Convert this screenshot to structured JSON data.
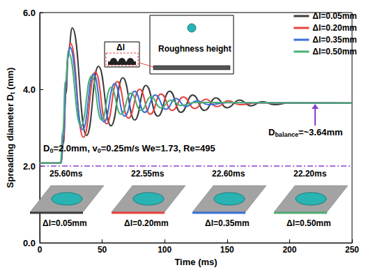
{
  "chart_data": {
    "type": "line",
    "xlabel": "Time (ms)",
    "ylabel": [
      "Spreading diameter D",
      {
        "sub": "t"
      },
      " (mm)"
    ],
    "xlim": [
      0,
      250
    ],
    "xticks": [
      0,
      50,
      100,
      150,
      200,
      250
    ],
    "ylim": [
      0,
      6
    ],
    "yticks": [
      {
        "value": 0,
        "label": "0.0"
      },
      {
        "value": 2,
        "label": "2.0"
      },
      {
        "value": 4,
        "label": "4.0"
      },
      {
        "value": 6,
        "label": "6.0"
      }
    ],
    "grid": false,
    "legend": "upper right",
    "reference_line": 2.0,
    "series": [
      {
        "name": "Δl=0.05mm",
        "color": "#3d3d3d",
        "x": [
          0,
          17,
          19,
          21,
          23,
          26,
          37.5,
          47,
          57,
          66.5,
          76,
          85,
          94.5,
          104,
          113,
          122.5,
          132,
          141,
          150,
          160,
          169,
          178,
          188,
          200,
          250
        ],
        "values": [
          2.08,
          2.08,
          2.6,
          3.9,
          5.0,
          5.6,
          2.8,
          4.6,
          3.05,
          4.3,
          3.2,
          4.1,
          3.3,
          3.95,
          3.4,
          3.85,
          3.45,
          3.78,
          3.52,
          3.72,
          3.57,
          3.68,
          3.6,
          3.65,
          3.64
        ]
      },
      {
        "name": "Δl=0.20mm",
        "color": "#e8413c",
        "x": [
          0,
          17,
          19,
          21,
          22.5,
          24.5,
          35,
          44.5,
          53.5,
          62,
          71,
          80,
          88.5,
          97,
          106,
          115,
          124,
          133,
          142,
          151,
          160,
          175,
          250
        ],
        "values": [
          2.08,
          2.08,
          2.7,
          4.0,
          4.9,
          5.2,
          2.75,
          4.45,
          3.1,
          4.2,
          3.25,
          4.0,
          3.35,
          3.88,
          3.45,
          3.8,
          3.5,
          3.74,
          3.55,
          3.7,
          3.6,
          3.65,
          3.64
        ]
      },
      {
        "name": "Δl=0.35mm",
        "color": "#3a6fd8",
        "x": [
          0,
          17,
          19,
          21,
          22.5,
          24,
          34.5,
          43,
          51.5,
          60,
          68,
          76,
          84,
          92.5,
          101,
          109,
          117,
          126,
          135,
          150,
          250
        ],
        "values": [
          2.08,
          2.08,
          2.8,
          4.1,
          4.8,
          5.1,
          2.95,
          4.4,
          3.15,
          4.15,
          3.3,
          3.95,
          3.4,
          3.85,
          3.48,
          3.76,
          3.55,
          3.7,
          3.6,
          3.65,
          3.64
        ]
      },
      {
        "name": "Δl=0.50mm",
        "color": "#4cae74",
        "x": [
          0,
          16.5,
          18.5,
          20.5,
          23,
          33,
          41.5,
          49.5,
          57,
          65,
          73,
          81,
          89,
          97,
          105,
          113,
          125,
          250
        ],
        "values": [
          2.08,
          2.08,
          2.9,
          4.2,
          4.95,
          3.05,
          4.35,
          3.2,
          4.05,
          3.35,
          3.9,
          3.45,
          3.8,
          3.52,
          3.72,
          3.58,
          3.66,
          3.64
        ]
      }
    ],
    "annotations": {
      "conditions": [
        "D",
        {
          "sub": "0"
        },
        "=2.0mm, v",
        {
          "sub": "0"
        },
        "=0.25m/s We=1.73, Re=495"
      ],
      "balance": [
        "D",
        {
          "sub": "balance"
        },
        "=~3.64mm"
      ],
      "roughness": "Roughness height",
      "delta": "Δl"
    },
    "insets": [
      {
        "time": "25.60ms",
        "label": "Δl=0.05mm"
      },
      {
        "time": "22.55ms",
        "label": "Δl=0.20mm"
      },
      {
        "time": "22.60ms",
        "label": "Δl=0.35mm"
      },
      {
        "time": "22.20ms",
        "label": "Δl=0.50mm"
      }
    ]
  }
}
